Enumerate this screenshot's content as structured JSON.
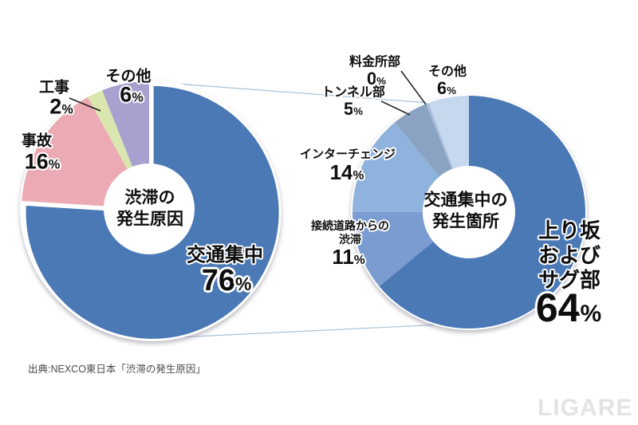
{
  "percent_sign": "%",
  "source_text": "出典:NEXCO東日本「渋滞の発生原因」",
  "watermark_text": "LIGARE",
  "colors": {
    "main_blue": "#4a79b6",
    "accident_pink": "#ecabb4",
    "construction_green": "#d9e6ae",
    "other_purple": "#a8a1cf",
    "connecting_road_blue": "#7a9cd0",
    "interchange_blue": "#8fb3dc",
    "tunnel_grayblue": "#8ba3c3",
    "tollgate_blue": "#a9bcd8",
    "other_lightblue": "#c5d8ee",
    "connector_line": "#a8c2d6",
    "leader_line": "#1a1a1a"
  },
  "chart_data": [
    {
      "type": "pie",
      "donut": true,
      "title": "渋滞の発生原因",
      "center_label": "渋滞の\n発生原因",
      "labels": [
        "交通集中",
        "事故",
        "工事",
        "その他"
      ],
      "values": [
        76,
        16,
        2,
        6
      ],
      "colors": [
        "#4a79b6",
        "#ecabb4",
        "#d9e6ae",
        "#a8a1cf"
      ],
      "display_labels": [
        "交通集中",
        "事故",
        "工事",
        "その他"
      ],
      "display_values": [
        "76",
        "16",
        "2",
        "6"
      ],
      "start_angle_deg": 0,
      "direction": "clockwise",
      "exploded_slice": "交通集中",
      "legend": "none"
    },
    {
      "type": "pie",
      "donut": true,
      "title": "交通集中の発生箇所",
      "center_label": "交通集中の\n発生箇所",
      "labels": [
        "上り坂およびサグ部",
        "接続道路からの渋滞",
        "インターチェンジ",
        "トンネル部",
        "料金所部",
        "その他"
      ],
      "values": [
        64,
        11,
        14,
        5,
        0,
        6
      ],
      "colors": [
        "#4a79b6",
        "#7a9cd0",
        "#8fb3dc",
        "#8ba3c3",
        "#a9bcd8",
        "#c5d8ee"
      ],
      "display_labels": [
        "上り坂および\nサグ部",
        "接続道路からの\n渋滞",
        "インターチェンジ",
        "トンネル部",
        "料金所部",
        "その他"
      ],
      "display_values": [
        "64",
        "11",
        "14",
        "5",
        "0",
        "6"
      ],
      "start_angle_deg": 0,
      "direction": "clockwise",
      "legend": "none"
    }
  ]
}
